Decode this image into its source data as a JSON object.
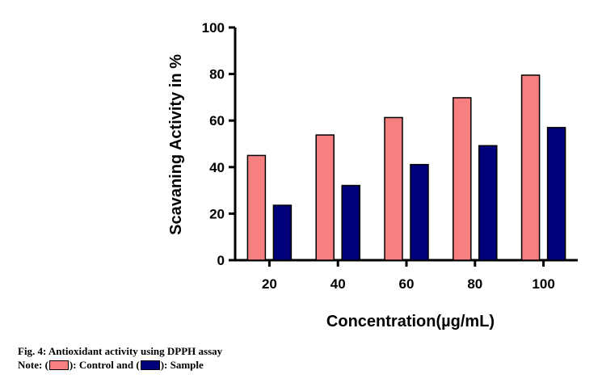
{
  "chart_data": {
    "type": "bar",
    "categories": [
      "20",
      "40",
      "60",
      "80",
      "100"
    ],
    "series": [
      {
        "name": "Control",
        "color": "#f87f7f",
        "values": [
          45,
          53.8,
          61.3,
          69.8,
          79.5
        ]
      },
      {
        "name": "Sample",
        "color": "#00007a",
        "values": [
          23.6,
          32.1,
          41.1,
          49.2,
          57
        ]
      }
    ],
    "ylim": [
      0,
      100
    ],
    "yticks": [
      "0",
      "20",
      "40",
      "60",
      "80",
      "100"
    ],
    "ylabel": "Scavaning Activity in %",
    "xlabel": "Concentration(µg/mL)"
  },
  "caption": {
    "figure": "Fig. 4: Antioxidant activity using DPPH assay",
    "note_prefix": "Note: (",
    "control_text": "): Control and (",
    "sample_text": "): Sample"
  }
}
